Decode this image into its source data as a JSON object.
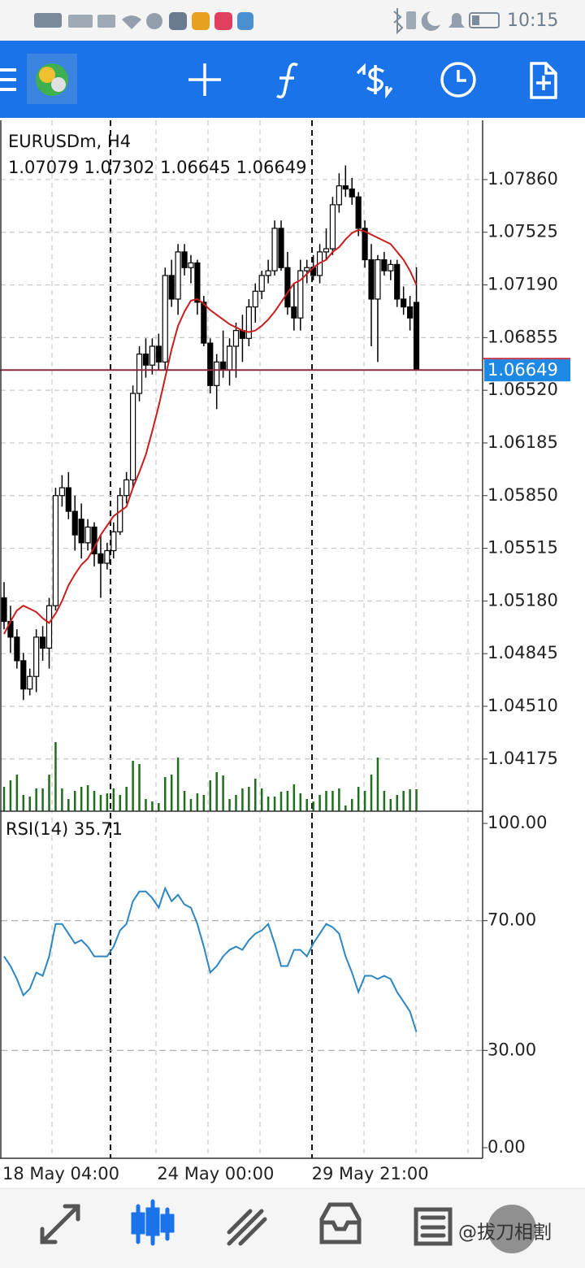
{
  "status_bar": {
    "time": "10:15"
  },
  "watermark": "@拔刀相割",
  "chart_data": [
    {
      "type": "candlestick",
      "title": "EURUSDm, H4",
      "open": [
        1.052,
        1.0505,
        1.0495,
        1.048,
        1.0462,
        1.047,
        1.0495,
        1.0488,
        1.0515,
        1.0585,
        1.059,
        1.0575,
        1.057,
        1.0555,
        1.0565,
        1.0548,
        1.0542,
        1.055,
        1.0562,
        1.0585,
        1.0595,
        1.065,
        1.0675,
        1.0668,
        1.068,
        1.067,
        1.0725,
        1.071,
        1.074,
        1.073,
        1.0733,
        1.0708,
        1.0682,
        1.0655,
        1.067,
        1.0665,
        1.068,
        1.069,
        1.0685,
        1.0705,
        1.0715,
        1.0725,
        1.0728,
        1.0755,
        1.073,
        1.0705,
        1.0698,
        1.0728,
        1.073,
        1.0725,
        1.074,
        1.0742,
        1.077,
        1.0782,
        1.078,
        1.0775,
        1.0755,
        1.0735,
        1.071,
        1.0735,
        1.0728,
        1.0732,
        1.071,
        1.0705,
        1.07079
      ],
      "high": [
        1.053,
        1.0515,
        1.05,
        1.0485,
        1.0475,
        1.05,
        1.0502,
        1.052,
        1.059,
        1.0598,
        1.06,
        1.0585,
        1.058,
        1.057,
        1.0568,
        1.056,
        1.0555,
        1.0568,
        1.059,
        1.06,
        1.0655,
        1.068,
        1.0685,
        1.0685,
        1.0688,
        1.073,
        1.0735,
        1.0745,
        1.0745,
        1.0738,
        1.0735,
        1.0712,
        1.0685,
        1.0675,
        1.069,
        1.0685,
        1.0695,
        1.07,
        1.071,
        1.072,
        1.0728,
        1.0735,
        1.076,
        1.076,
        1.074,
        1.072,
        1.0735,
        1.0735,
        1.0738,
        1.0745,
        1.0755,
        1.0775,
        1.079,
        1.0795,
        1.0787,
        1.0778,
        1.076,
        1.0745,
        1.0738,
        1.074,
        1.0735,
        1.0735,
        1.0718,
        1.0712,
        1.07302
      ],
      "low": [
        1.05,
        1.0485,
        1.0475,
        1.0455,
        1.0458,
        1.046,
        1.048,
        1.0475,
        1.0512,
        1.0578,
        1.057,
        1.055,
        1.0545,
        1.055,
        1.054,
        1.052,
        1.0538,
        1.0545,
        1.056,
        1.058,
        1.059,
        1.0645,
        1.066,
        1.0662,
        1.0665,
        1.0665,
        1.0705,
        1.07,
        1.0725,
        1.072,
        1.07,
        1.068,
        1.065,
        1.064,
        1.066,
        1.0655,
        1.066,
        1.067,
        1.068,
        1.0695,
        1.071,
        1.072,
        1.0725,
        1.0728,
        1.07,
        1.069,
        1.069,
        1.072,
        1.0722,
        1.072,
        1.0735,
        1.0738,
        1.0765,
        1.0775,
        1.077,
        1.075,
        1.073,
        1.068,
        1.067,
        1.0725,
        1.0722,
        1.0705,
        1.07,
        1.069,
        1.06645
      ],
      "close": [
        1.0505,
        1.0495,
        1.048,
        1.0462,
        1.047,
        1.0495,
        1.0488,
        1.0515,
        1.0585,
        1.059,
        1.0575,
        1.056,
        1.0555,
        1.0565,
        1.0548,
        1.0542,
        1.055,
        1.0562,
        1.0585,
        1.0595,
        1.065,
        1.0675,
        1.0668,
        1.068,
        1.067,
        1.0725,
        1.071,
        1.074,
        1.073,
        1.0733,
        1.0708,
        1.0682,
        1.0655,
        1.067,
        1.0665,
        1.068,
        1.069,
        1.0685,
        1.0705,
        1.0715,
        1.0725,
        1.0728,
        1.0755,
        1.073,
        1.0705,
        1.0698,
        1.0728,
        1.073,
        1.0725,
        1.074,
        1.0742,
        1.077,
        1.0782,
        1.078,
        1.0775,
        1.0755,
        1.0735,
        1.071,
        1.0735,
        1.0728,
        1.0732,
        1.071,
        1.0705,
        1.0698,
        1.06649
      ],
      "volume": [
        30,
        38,
        45,
        20,
        18,
        28,
        28,
        45,
        85,
        28,
        15,
        25,
        30,
        32,
        25,
        20,
        22,
        28,
        20,
        30,
        62,
        58,
        15,
        12,
        10,
        42,
        45,
        66,
        25,
        15,
        22,
        20,
        38,
        48,
        44,
        15,
        20,
        28,
        30,
        40,
        28,
        18,
        18,
        24,
        25,
        33,
        22,
        15,
        12,
        20,
        25,
        25,
        28,
        7,
        15,
        30,
        25,
        45,
        66,
        25,
        15,
        20,
        25,
        27,
        27
      ],
      "vlim": [
        0,
        100
      ],
      "volume_color": "#1e6e1e",
      "up_color": "#ffffff",
      "down_color": "#000000",
      "ma": {
        "color": "#c81e1e",
        "values": [
          1.0497,
          1.0505,
          1.0512,
          1.0515,
          1.0513,
          1.0511,
          1.0507,
          1.0504,
          1.051,
          1.0518,
          1.0528,
          1.0535,
          1.0541,
          1.0545,
          1.0552,
          1.056,
          1.0566,
          1.0572,
          1.0575,
          1.0578,
          1.059,
          1.06,
          1.0611,
          1.0626,
          1.0642,
          1.066,
          1.0678,
          1.0693,
          1.0702,
          1.0709,
          1.071,
          1.0707,
          1.0703,
          1.07,
          1.0697,
          1.0694,
          1.0692,
          1.069,
          1.0689,
          1.069,
          1.0693,
          1.0697,
          1.0702,
          1.0708,
          1.0714,
          1.072,
          1.0722,
          1.0726,
          1.073,
          1.0733,
          1.0735,
          1.074,
          1.0743,
          1.0748,
          1.0752,
          1.0754,
          1.0753,
          1.0751,
          1.0749,
          1.0747,
          1.0745,
          1.074,
          1.0735,
          1.0728,
          1.0719
        ]
      },
      "price_line_color": "#8a2a3a",
      "price_box_color": "#1e88e5",
      "ylim": [
        1.03843,
        1.08237
      ],
      "yticks": [
        {
          "value": 1.0786,
          "label": "1.07860"
        },
        1.07525,
        {
          "value": 1.0719,
          "label": "1.07190"
        },
        1.06855,
        {
          "value": 1.0652,
          "label": "1.06520"
        },
        1.06185,
        {
          "value": 1.0585,
          "label": "1.05850"
        },
        1.05515,
        {
          "value": 1.0518,
          "label": "1.05180"
        },
        1.04845,
        {
          "value": 1.0451,
          "label": "1.04510"
        },
        1.04175
      ],
      "xticks": [
        {
          "value": 0,
          "label": "18 May 04:00"
        },
        {
          "value": 24,
          "label": "24 May 00:00"
        },
        {
          "value": 48,
          "label": "29 May 21:00"
        }
      ],
      "grid": true
    },
    {
      "type": "line",
      "name": "RSI(14)",
      "color": "#2e86c1",
      "values": [
        59,
        56,
        52,
        47,
        49,
        54,
        53,
        59,
        69,
        69,
        66,
        63,
        64,
        62,
        59,
        59,
        59,
        62,
        67,
        69,
        76,
        79,
        79,
        77,
        74,
        80,
        76,
        78,
        75,
        74,
        69,
        62,
        54,
        56,
        59,
        61,
        62,
        61,
        64,
        66,
        67,
        69,
        63,
        56,
        56,
        61,
        61,
        59,
        63,
        66,
        69,
        68,
        66,
        59,
        54,
        48,
        53,
        53,
        52,
        53,
        52,
        48,
        45,
        42,
        35.71
      ],
      "ylim": [
        -3.26,
        103.76
      ],
      "yticks": [
        {
          "value": 100,
          "label": "100.00"
        },
        {
          "value": 70,
          "label": "70.00"
        },
        {
          "value": 30,
          "label": "30.00"
        },
        {
          "value": 0,
          "label": "0.00"
        }
      ],
      "grid": true
    }
  ]
}
